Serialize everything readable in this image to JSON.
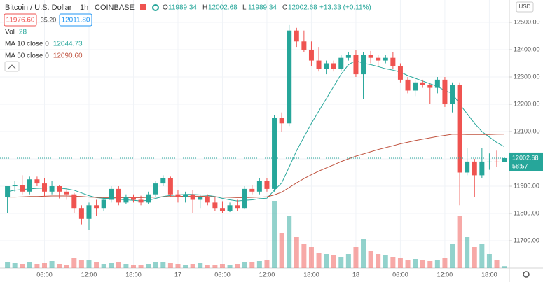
{
  "chart_data": {
    "type": "candlestick",
    "header": {
      "symbol": "Bitcoin / U.S. Dollar",
      "interval": "1h",
      "exchange": "COINBASE",
      "ohlc": [
        {
          "label": "O",
          "value": "11989.34"
        },
        {
          "label": "H",
          "value": "12002.68"
        },
        {
          "label": "L",
          "value": "11989.34"
        },
        {
          "label": "C",
          "value": "12002.68"
        }
      ],
      "change": "+13.33 (+0.11%)",
      "sell": "11976.60",
      "spread": "35.20",
      "buy": "12011.80"
    },
    "indicators": [
      {
        "name": "Vol",
        "value": "28",
        "color": "#26a69a"
      },
      {
        "name": "MA 10 close 0",
        "value": "12044.73",
        "color": "#26a69a"
      },
      {
        "name": "MA 50 close 0",
        "value": "12090.60",
        "color": "#c0533f"
      }
    ],
    "currency": "USD",
    "last_price": {
      "value": 12002.68,
      "label": "12002.68"
    },
    "countdown": "58:57",
    "up_color": "#26a69a",
    "down_color": "#ef5350",
    "xlim": [
      0,
      68.7
    ],
    "ylim": [
      11600,
      12582
    ],
    "vlim": [
      0,
      1000
    ],
    "grid": true,
    "xticks": [
      {
        "value": 6,
        "label": "06:00"
      },
      {
        "value": 12,
        "label": "12:00"
      },
      {
        "value": 18,
        "label": "18:00"
      },
      {
        "value": 24,
        "label": "17"
      },
      {
        "value": 30,
        "label": "06:00"
      },
      {
        "value": 36,
        "label": "12:00"
      },
      {
        "value": 42,
        "label": "18:00"
      },
      {
        "value": 48,
        "label": "18"
      },
      {
        "value": 54,
        "label": "06:00"
      },
      {
        "value": 60,
        "label": "12:00"
      },
      {
        "value": 66,
        "label": "18:00"
      }
    ],
    "yticks": [
      {
        "value": 12500,
        "label": "12500.00"
      },
      {
        "value": 12400,
        "label": "12400.00"
      },
      {
        "value": 12300,
        "label": "12300.00"
      },
      {
        "value": 12200,
        "label": "12200.00"
      },
      {
        "value": 12100,
        "label": "12100.00"
      },
      {
        "value": 12000,
        "label": "12000.00"
      },
      {
        "value": 11900,
        "label": "11900.00"
      },
      {
        "value": 11800,
        "label": "11800.00"
      },
      {
        "value": 11700,
        "label": "11700.00"
      }
    ],
    "x": [
      1,
      2,
      3,
      4,
      5,
      6,
      7,
      8,
      9,
      10,
      11,
      12,
      13,
      14,
      15,
      16,
      17,
      18,
      19,
      20,
      21,
      22,
      23,
      24,
      25,
      26,
      27,
      28,
      29,
      30,
      31,
      32,
      33,
      34,
      35,
      36,
      37,
      38,
      39,
      40,
      41,
      42,
      43,
      44,
      45,
      46,
      47,
      48,
      49,
      50,
      51,
      52,
      53,
      54,
      55,
      56,
      57,
      58,
      59,
      60,
      61,
      62,
      63,
      64,
      65,
      66,
      67,
      68
    ],
    "open": [
      11860,
      11900,
      11905,
      11880,
      11925,
      11910,
      11880,
      11900,
      11880,
      11870,
      11820,
      11780,
      11830,
      11820,
      11850,
      11890,
      11840,
      11860,
      11850,
      11840,
      11870,
      11910,
      11930,
      11870,
      11860,
      11870,
      11850,
      11860,
      11840,
      11820,
      11810,
      11830,
      11820,
      11890,
      11880,
      11920,
      11890,
      12150,
      12130,
      12470,
      12430,
      12400,
      12360,
      12330,
      12350,
      12330,
      12370,
      12380,
      12310,
      12380,
      12370,
      12360,
      12370,
      12340,
      12290,
      12250,
      12280,
      12270,
      12260,
      12290,
      12200,
      12270,
      11950,
      11990,
      11940,
      11990,
      11990,
      11989.34
    ],
    "high": [
      11900,
      11920,
      11940,
      11935,
      11935,
      11930,
      11920,
      11905,
      11890,
      11875,
      11830,
      11840,
      11850,
      11860,
      11900,
      11900,
      11870,
      11870,
      11865,
      11880,
      11920,
      11940,
      11935,
      11885,
      11880,
      11885,
      11870,
      11870,
      11860,
      11845,
      11840,
      11850,
      11900,
      11905,
      11930,
      11930,
      12160,
      12170,
      12490,
      12480,
      12470,
      12430,
      12410,
      12360,
      12360,
      12380,
      12390,
      12400,
      12390,
      12395,
      12380,
      12380,
      12390,
      12350,
      12300,
      12290,
      12290,
      12275,
      12300,
      12300,
      12280,
      12280,
      12040,
      12000,
      12040,
      12020,
      12030,
      12002.68
    ],
    "low": [
      11800,
      11880,
      11870,
      11870,
      11900,
      11860,
      11870,
      11855,
      11850,
      11800,
      11760,
      11740,
      11790,
      11810,
      11840,
      11830,
      11835,
      11840,
      11830,
      11835,
      11860,
      11900,
      11860,
      11840,
      11840,
      11800,
      11820,
      11830,
      11810,
      11800,
      11805,
      11810,
      11815,
      11870,
      11870,
      11880,
      11880,
      12100,
      12120,
      12410,
      12390,
      12340,
      12320,
      12310,
      12320,
      12320,
      12360,
      12300,
      12220,
      12350,
      12340,
      12350,
      12330,
      12280,
      12240,
      12230,
      12260,
      12200,
      12240,
      12190,
      12170,
      11830,
      11940,
      11860,
      11930,
      11960,
      11970,
      11989.34
    ],
    "close": [
      11900,
      11905,
      11880,
      11925,
      11910,
      11880,
      11900,
      11880,
      11870,
      11820,
      11780,
      11830,
      11820,
      11850,
      11890,
      11840,
      11860,
      11850,
      11840,
      11870,
      11910,
      11930,
      11870,
      11860,
      11870,
      11850,
      11860,
      11840,
      11820,
      11810,
      11830,
      11820,
      11890,
      11880,
      11920,
      11890,
      12150,
      12130,
      12470,
      12430,
      12400,
      12360,
      12330,
      12350,
      12330,
      12370,
      12380,
      12310,
      12380,
      12370,
      12360,
      12370,
      12340,
      12290,
      12250,
      12280,
      12270,
      12260,
      12290,
      12200,
      12270,
      11950,
      11990,
      11940,
      11990,
      11990,
      11989,
      12002.68
    ],
    "volume": [
      90,
      70,
      60,
      80,
      60,
      70,
      100,
      60,
      50,
      150,
      120,
      110,
      80,
      60,
      70,
      90,
      60,
      50,
      40,
      60,
      80,
      90,
      70,
      60,
      50,
      60,
      70,
      50,
      40,
      60,
      50,
      60,
      80,
      90,
      100,
      120,
      960,
      500,
      750,
      450,
      350,
      300,
      220,
      200,
      180,
      160,
      200,
      300,
      420,
      250,
      200,
      180,
      160,
      150,
      120,
      130,
      110,
      100,
      120,
      140,
      350,
      750,
      450,
      300,
      350,
      200,
      120,
      28
    ],
    "ma10": [
      11880,
      11885,
      11888,
      11890,
      11892,
      11893,
      11894,
      11893,
      11890,
      11885,
      11875,
      11865,
      11858,
      11855,
      11855,
      11852,
      11850,
      11848,
      11846,
      11848,
      11855,
      11862,
      11866,
      11868,
      11870,
      11870,
      11868,
      11866,
      11862,
      11855,
      11850,
      11846,
      11848,
      11850,
      11854,
      11856,
      11885,
      11912,
      11970,
      12030,
      12080,
      12130,
      12175,
      12220,
      12265,
      12310,
      12345,
      12360,
      12350,
      12345,
      12338,
      12330,
      12325,
      12318,
      12305,
      12295,
      12285,
      12275,
      12265,
      12250,
      12240,
      12200,
      12165,
      12130,
      12100,
      12080,
      12060,
      12044.73
    ],
    "ma50": [
      11860,
      11860,
      11861,
      11862,
      11862,
      11863,
      11864,
      11864,
      11864,
      11863,
      11862,
      11860,
      11859,
      11858,
      11858,
      11858,
      11858,
      11858,
      11858,
      11859,
      11860,
      11861,
      11862,
      11862,
      11863,
      11863,
      11863,
      11862,
      11861,
      11860,
      11859,
      11858,
      11858,
      11859,
      11860,
      11861,
      11868,
      11878,
      11895,
      11912,
      11928,
      11942,
      11955,
      11967,
      11978,
      11990,
      12000,
      12010,
      12018,
      12026,
      12034,
      12041,
      12048,
      12055,
      12061,
      12067,
      12072,
      12077,
      12082,
      12086,
      12090,
      12090,
      12089,
      12089,
      12089,
      12089,
      12090,
      12090.6
    ]
  }
}
